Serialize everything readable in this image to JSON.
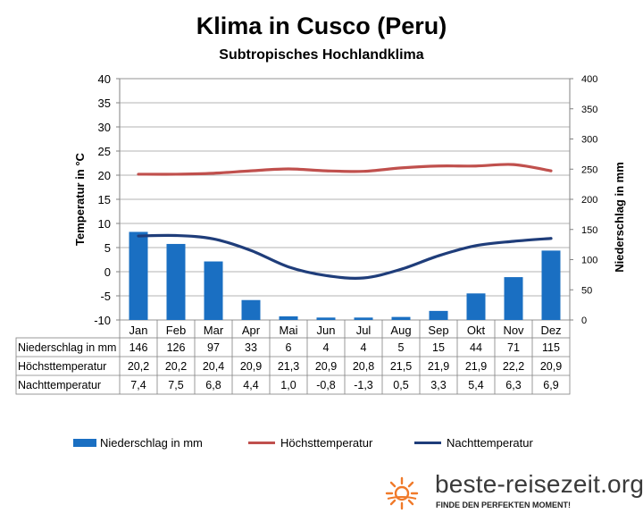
{
  "title": "Klima in Cusco (Peru)",
  "subtitle": "Subtropisches Hochlandklima",
  "chart_data": {
    "type": "bar",
    "categories": [
      "Jan",
      "Feb",
      "Mar",
      "Apr",
      "Mai",
      "Jun",
      "Jul",
      "Aug",
      "Sep",
      "Okt",
      "Nov",
      "Dez"
    ],
    "series": [
      {
        "name": "Niederschlag in mm",
        "kind": "bar",
        "axis": "right",
        "color": "#1a6fc2",
        "values": [
          146,
          126,
          97,
          33,
          6,
          4,
          4,
          5,
          15,
          44,
          71,
          115
        ],
        "labels": [
          "146",
          "126",
          "97",
          "33",
          "6",
          "4",
          "4",
          "5",
          "15",
          "44",
          "71",
          "115"
        ]
      },
      {
        "name": "Höchsttemperatur",
        "kind": "line",
        "axis": "left",
        "color": "#c0504d",
        "values": [
          20.2,
          20.2,
          20.4,
          20.9,
          21.3,
          20.9,
          20.8,
          21.5,
          21.9,
          21.9,
          22.2,
          20.9
        ],
        "labels": [
          "20,2",
          "20,2",
          "20,4",
          "20,9",
          "21,3",
          "20,9",
          "20,8",
          "21,5",
          "21,9",
          "21,9",
          "22,2",
          "20,9"
        ]
      },
      {
        "name": "Nachttemperatur",
        "kind": "line",
        "axis": "left",
        "color": "#1f3d7a",
        "values": [
          7.4,
          7.5,
          6.8,
          4.4,
          1.0,
          -0.8,
          -1.3,
          0.5,
          3.3,
          5.4,
          6.3,
          6.9
        ],
        "labels": [
          "7,4",
          "7,5",
          "6,8",
          "4,4",
          "1,0",
          "-0,8",
          "-1,3",
          "0,5",
          "3,3",
          "5,4",
          "6,3",
          "6,9"
        ]
      }
    ],
    "ylabel_left": "Temperatur in °C",
    "ylabel_right": "Niederschlag in mm",
    "ylim_left": [
      -10,
      40
    ],
    "ylim_right": [
      0,
      400
    ],
    "yticks_left": [
      -10,
      -5,
      0,
      5,
      10,
      15,
      20,
      25,
      30,
      35,
      40
    ],
    "yticks_right": [
      0,
      50,
      100,
      150,
      200,
      250,
      300,
      350,
      400
    ],
    "grid": true,
    "legend_position": "bottom"
  },
  "table_rows": [
    "Niederschlag in mm",
    "Höchsttemperatur",
    "Nachttemperatur"
  ],
  "legend": [
    {
      "label": "Niederschlag in mm",
      "color": "#1a6fc2",
      "style": "bar"
    },
    {
      "label": "Höchsttemperatur",
      "color": "#c0504d",
      "style": "line"
    },
    {
      "label": "Nachttemperatur",
      "color": "#1f3d7a",
      "style": "line"
    }
  ],
  "brand": {
    "name": "beste-reisezeit.org",
    "tagline": "FINDE DEN PERFEKTEN MOMENT!",
    "sun_color": "#f07a2a"
  }
}
